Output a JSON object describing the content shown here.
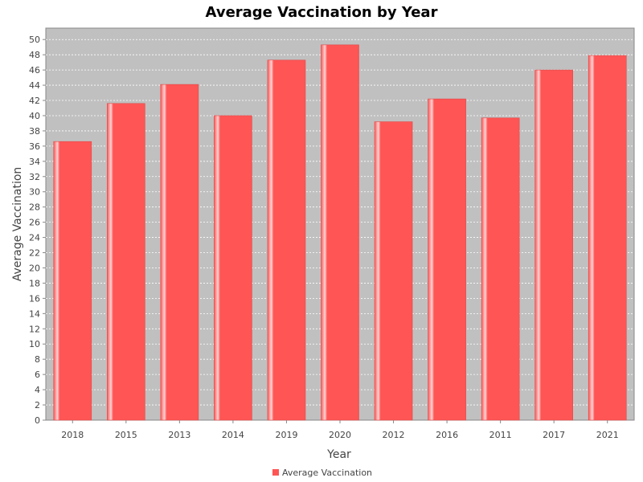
{
  "chart_data": {
    "type": "bar",
    "title": "Average Vaccination by Year",
    "xlabel": "Year",
    "ylabel": "Average Vaccination",
    "categories": [
      "2018",
      "2015",
      "2013",
      "2014",
      "2019",
      "2020",
      "2012",
      "2016",
      "2011",
      "2017",
      "2021"
    ],
    "series": [
      {
        "name": "Average Vaccination",
        "values": [
          36.6,
          41.6,
          44.1,
          40.0,
          47.3,
          49.3,
          39.2,
          42.2,
          39.7,
          46.0,
          47.9
        ]
      }
    ],
    "ylim": [
      0,
      51.5
    ],
    "yticks": [
      0,
      2,
      4,
      6,
      8,
      10,
      12,
      14,
      16,
      18,
      20,
      22,
      24,
      26,
      28,
      30,
      32,
      34,
      36,
      38,
      40,
      42,
      44,
      46,
      48,
      50
    ],
    "grid": true,
    "legend_position": "bottom",
    "colors": {
      "bar": "#ff5555",
      "bar_light": "#ffd5d5",
      "plot_background": "#c0c0c0",
      "gridline": "#ffffff"
    }
  }
}
